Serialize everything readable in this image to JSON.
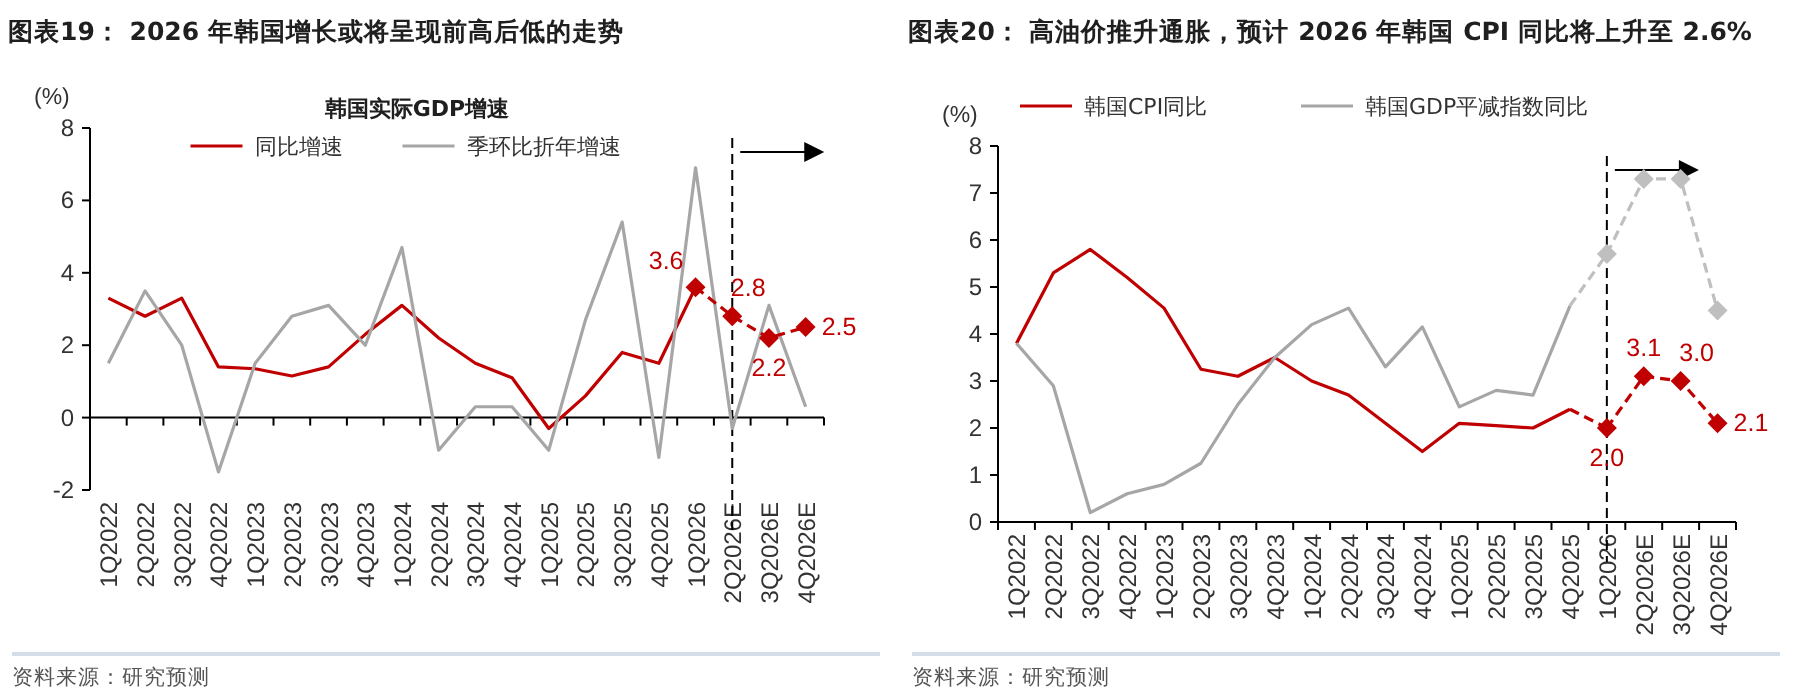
{
  "chart_data": [
    {
      "type": "line",
      "title": "图表19：  2026 年韩国增长或将呈现前高后低的走势",
      "ylabel": "(%)",
      "legend_title": "韩国实际GDP增速",
      "legend": "top",
      "categories": [
        "1Q2022",
        "2Q2022",
        "3Q2022",
        "4Q2022",
        "1Q2023",
        "2Q2023",
        "3Q2023",
        "4Q2023",
        "1Q2024",
        "2Q2024",
        "3Q2024",
        "4Q2024",
        "1Q2025",
        "2Q2025",
        "3Q2025",
        "4Q2025",
        "1Q2026",
        "2Q2026E",
        "3Q2026E",
        "4Q2026E"
      ],
      "series": [
        {
          "name": "同比增速",
          "color": "#c00000",
          "line_style": "solid",
          "marker": "none",
          "values": [
            3.3,
            2.8,
            3.3,
            1.4,
            1.35,
            1.15,
            1.4,
            2.3,
            3.1,
            2.2,
            1.5,
            1.1,
            -0.3,
            0.6,
            1.8,
            1.5,
            3.6,
            null,
            null,
            null
          ]
        },
        {
          "name": "季环比折年增速",
          "color": "#a6a6a6",
          "line_style": "solid",
          "marker": "none",
          "values": [
            1.5,
            3.5,
            2.0,
            -1.5,
            1.5,
            2.8,
            3.1,
            2.0,
            4.7,
            -0.9,
            0.3,
            0.3,
            -0.9,
            2.7,
            5.4,
            -1.1,
            6.9,
            -0.3,
            3.1,
            0.3
          ]
        },
        {
          "color": "#c00000",
          "line_style": "dashed",
          "marker": "diamond",
          "values": [
            null,
            null,
            null,
            null,
            null,
            null,
            null,
            null,
            null,
            null,
            null,
            null,
            null,
            null,
            null,
            null,
            3.6,
            2.8,
            2.2,
            2.5
          ],
          "value_labels": [
            null,
            null,
            null,
            null,
            null,
            null,
            null,
            null,
            null,
            null,
            null,
            null,
            null,
            null,
            null,
            null,
            "3.6",
            "2.8",
            "2.2",
            "2.5"
          ]
        }
      ],
      "ylim": [
        -2,
        8
      ],
      "yticks": [
        -2,
        0,
        2,
        4,
        6,
        8
      ],
      "ref_lines": [
        {
          "axis": "x",
          "value": "2Q2026E",
          "line_style": "dashed",
          "color": "#000000"
        }
      ],
      "annotations": [
        "资料来源：研究预测"
      ]
    },
    {
      "type": "line",
      "title": "图表20：  高油价推升通胀，预计 2026 年韩国 CPI 同比将上升至 2.6%",
      "ylabel": "(%)",
      "legend": "top",
      "categories": [
        "1Q2022",
        "2Q2022",
        "3Q2022",
        "4Q2022",
        "1Q2023",
        "2Q2023",
        "3Q2023",
        "4Q2023",
        "1Q2024",
        "2Q2024",
        "3Q2024",
        "4Q2024",
        "1Q2025",
        "2Q2025",
        "3Q2025",
        "4Q2025",
        "1Q2026",
        "2Q2026E",
        "3Q2026E",
        "4Q2026E"
      ],
      "series": [
        {
          "name": "韩国CPI同比",
          "color": "#c00000",
          "line_style": "solid",
          "marker": "none",
          "values": [
            3.8,
            5.3,
            5.8,
            5.2,
            4.55,
            3.25,
            3.1,
            3.5,
            3.0,
            2.7,
            2.1,
            1.5,
            2.1,
            2.05,
            2.0,
            2.4,
            null,
            null,
            null,
            null
          ]
        },
        {
          "name": "韩国GDP平减指数同比",
          "color": "#a6a6a6",
          "line_style": "solid",
          "marker": "none",
          "values": [
            3.8,
            2.9,
            0.2,
            0.6,
            0.8,
            1.25,
            2.5,
            3.5,
            4.2,
            4.55,
            3.3,
            4.15,
            2.45,
            2.8,
            2.7,
            4.6,
            null,
            null,
            null,
            null
          ]
        },
        {
          "color": "#c00000",
          "line_style": "dashed",
          "marker": "none",
          "values": [
            null,
            null,
            null,
            null,
            null,
            null,
            null,
            null,
            null,
            null,
            null,
            null,
            null,
            null,
            null,
            2.4,
            2.0,
            null,
            null,
            null
          ]
        },
        {
          "color": "#c00000",
          "line_style": "dashed",
          "marker": "diamond",
          "values": [
            null,
            null,
            null,
            null,
            null,
            null,
            null,
            null,
            null,
            null,
            null,
            null,
            null,
            null,
            null,
            null,
            2.0,
            3.1,
            3.0,
            2.1
          ],
          "value_labels": [
            null,
            null,
            null,
            null,
            null,
            null,
            null,
            null,
            null,
            null,
            null,
            null,
            null,
            null,
            null,
            null,
            "2.0",
            "3.1",
            "3.0",
            "2.1"
          ]
        },
        {
          "color": "#bfbfbf",
          "line_style": "dashed",
          "marker": "none",
          "values": [
            null,
            null,
            null,
            null,
            null,
            null,
            null,
            null,
            null,
            null,
            null,
            null,
            null,
            null,
            null,
            4.6,
            5.7,
            null,
            null,
            null
          ]
        },
        {
          "color": "#bfbfbf",
          "line_style": "dashed",
          "marker": "diamond",
          "values": [
            null,
            null,
            null,
            null,
            null,
            null,
            null,
            null,
            null,
            null,
            null,
            null,
            null,
            null,
            null,
            null,
            5.7,
            7.3,
            7.3,
            4.5
          ]
        }
      ],
      "ylim": [
        0,
        8
      ],
      "yticks": [
        0,
        1,
        2,
        3,
        4,
        5,
        6,
        7,
        8
      ],
      "ref_lines": [
        {
          "axis": "x",
          "value": "1Q2026",
          "line_style": "dashed",
          "color": "#000000"
        }
      ],
      "annotations": [
        "资料来源：研究预测"
      ]
    }
  ]
}
